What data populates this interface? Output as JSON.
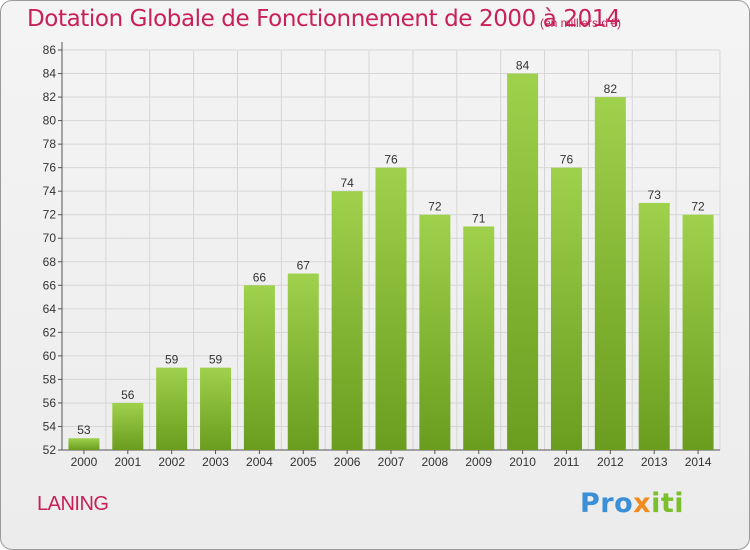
{
  "title": "Dotation Globale de Fonctionnement de 2000 à 2014",
  "subtitle": "(en milliers d'€)",
  "commune": "LANING",
  "brand": {
    "p1": "Pro",
    "p2": "x",
    "p3": "iti"
  },
  "colors": {
    "title": "#c8205a",
    "bar_light": "#9ccd4a",
    "bar_dark": "#6ea020",
    "grid": "#d6d6d6"
  },
  "chart_data": {
    "type": "bar",
    "categories": [
      "2000",
      "2001",
      "2002",
      "2003",
      "2004",
      "2005",
      "2006",
      "2007",
      "2008",
      "2009",
      "2010",
      "2011",
      "2012",
      "2013",
      "2014"
    ],
    "values": [
      53,
      56,
      59,
      59,
      66,
      67,
      74,
      76,
      72,
      71,
      84,
      76,
      82,
      73,
      72
    ],
    "title": "Dotation Globale de Fonctionnement de 2000 à 2014",
    "xlabel": "",
    "ylabel": "",
    "ylim": [
      52,
      86
    ],
    "yticks": [
      52,
      54,
      56,
      58,
      60,
      62,
      64,
      66,
      68,
      70,
      72,
      74,
      76,
      78,
      80,
      82,
      84,
      86
    ],
    "grid": true,
    "data_labels": true
  }
}
